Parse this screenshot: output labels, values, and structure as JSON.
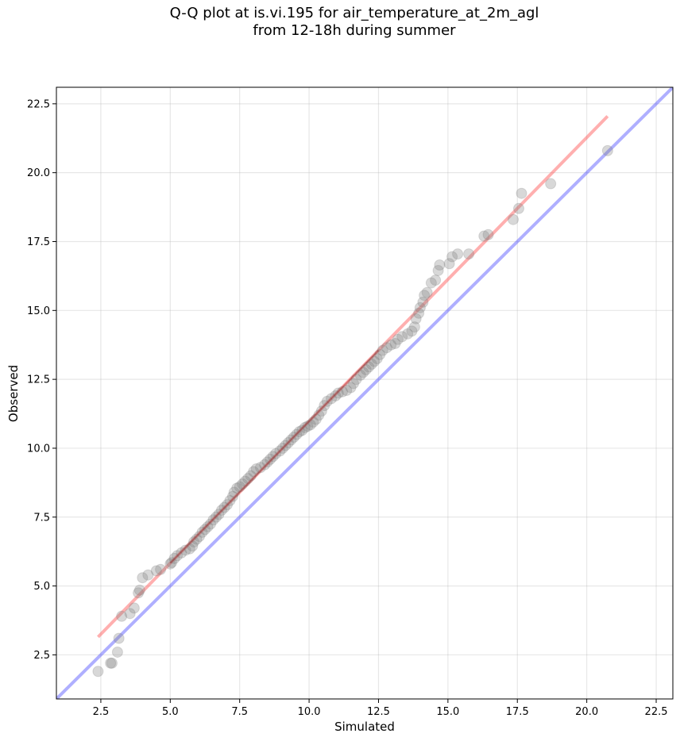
{
  "chart_data": {
    "type": "scatter",
    "title_lines": [
      "Q-Q plot at is.vi.195 for air_temperature_at_2m_agl",
      "from 12-18h during summer"
    ],
    "xlabel": "Simulated",
    "ylabel": "Observed",
    "xlim": [
      0.9,
      23.1
    ],
    "ylim": [
      0.9,
      23.1
    ],
    "xticks": [
      "2.5",
      "5.0",
      "7.5",
      "10.0",
      "12.5",
      "15.0",
      "17.5",
      "20.0",
      "22.5"
    ],
    "yticks": [
      "2.5",
      "5.0",
      "7.5",
      "10.0",
      "12.5",
      "15.0",
      "17.5",
      "20.0",
      "22.5"
    ],
    "grid": true,
    "colors": {
      "points": "#7f7f7f",
      "fit_line": "#ff4d4d",
      "identity_line": "#4d4dff",
      "points_fit_overlay": "#8b0000"
    },
    "identity_line": {
      "x": [
        0.9,
        23.1
      ],
      "y": [
        0.9,
        23.1
      ]
    },
    "fit_line": {
      "x": [
        2.4,
        20.75
      ],
      "y": [
        3.15,
        22.05
      ]
    },
    "points": [
      [
        2.4,
        1.9
      ],
      [
        2.85,
        2.2
      ],
      [
        2.9,
        2.2
      ],
      [
        3.1,
        2.6
      ],
      [
        3.15,
        3.1
      ],
      [
        3.25,
        3.9
      ],
      [
        3.55,
        4.0
      ],
      [
        3.7,
        4.2
      ],
      [
        3.85,
        4.75
      ],
      [
        3.9,
        4.85
      ],
      [
        4.0,
        5.3
      ],
      [
        4.2,
        5.4
      ],
      [
        4.5,
        5.55
      ],
      [
        4.65,
        5.6
      ],
      [
        5.0,
        5.8
      ],
      [
        5.05,
        5.85
      ],
      [
        5.15,
        6.0
      ],
      [
        5.25,
        6.1
      ],
      [
        5.4,
        6.2
      ],
      [
        5.55,
        6.3
      ],
      [
        5.7,
        6.35
      ],
      [
        5.8,
        6.45
      ],
      [
        5.85,
        6.6
      ],
      [
        5.95,
        6.7
      ],
      [
        6.05,
        6.8
      ],
      [
        6.15,
        6.95
      ],
      [
        6.25,
        7.05
      ],
      [
        6.35,
        7.15
      ],
      [
        6.45,
        7.25
      ],
      [
        6.55,
        7.4
      ],
      [
        6.65,
        7.5
      ],
      [
        6.75,
        7.6
      ],
      [
        6.85,
        7.75
      ],
      [
        6.95,
        7.85
      ],
      [
        7.05,
        7.95
      ],
      [
        7.15,
        8.1
      ],
      [
        7.25,
        8.25
      ],
      [
        7.3,
        8.4
      ],
      [
        7.4,
        8.55
      ],
      [
        7.5,
        8.6
      ],
      [
        7.6,
        8.7
      ],
      [
        7.7,
        8.8
      ],
      [
        7.8,
        8.9
      ],
      [
        7.9,
        9.0
      ],
      [
        8.0,
        9.15
      ],
      [
        8.1,
        9.25
      ],
      [
        8.25,
        9.3
      ],
      [
        8.4,
        9.4
      ],
      [
        8.5,
        9.5
      ],
      [
        8.6,
        9.6
      ],
      [
        8.7,
        9.7
      ],
      [
        8.8,
        9.8
      ],
      [
        8.95,
        9.9
      ],
      [
        9.05,
        10.0
      ],
      [
        9.15,
        10.1
      ],
      [
        9.25,
        10.2
      ],
      [
        9.35,
        10.3
      ],
      [
        9.45,
        10.4
      ],
      [
        9.55,
        10.5
      ],
      [
        9.65,
        10.6
      ],
      [
        9.75,
        10.65
      ],
      [
        9.85,
        10.75
      ],
      [
        9.95,
        10.8
      ],
      [
        10.05,
        10.85
      ],
      [
        10.15,
        10.95
      ],
      [
        10.25,
        11.05
      ],
      [
        10.35,
        11.2
      ],
      [
        10.45,
        11.35
      ],
      [
        10.55,
        11.55
      ],
      [
        10.65,
        11.7
      ],
      [
        10.8,
        11.8
      ],
      [
        10.95,
        11.9
      ],
      [
        11.05,
        12.0
      ],
      [
        11.2,
        12.05
      ],
      [
        11.35,
        12.1
      ],
      [
        11.5,
        12.2
      ],
      [
        11.6,
        12.35
      ],
      [
        11.7,
        12.5
      ],
      [
        11.85,
        12.65
      ],
      [
        11.95,
        12.75
      ],
      [
        12.05,
        12.85
      ],
      [
        12.15,
        12.95
      ],
      [
        12.25,
        13.05
      ],
      [
        12.35,
        13.15
      ],
      [
        12.45,
        13.25
      ],
      [
        12.55,
        13.4
      ],
      [
        12.65,
        13.55
      ],
      [
        12.8,
        13.65
      ],
      [
        12.95,
        13.75
      ],
      [
        13.1,
        13.8
      ],
      [
        13.2,
        13.95
      ],
      [
        13.35,
        14.05
      ],
      [
        13.55,
        14.15
      ],
      [
        13.7,
        14.25
      ],
      [
        13.8,
        14.4
      ],
      [
        13.85,
        14.7
      ],
      [
        13.95,
        14.9
      ],
      [
        14.0,
        15.1
      ],
      [
        14.1,
        15.3
      ],
      [
        14.15,
        15.55
      ],
      [
        14.25,
        15.65
      ],
      [
        14.4,
        16.0
      ],
      [
        14.55,
        16.1
      ],
      [
        14.65,
        16.45
      ],
      [
        14.7,
        16.65
      ],
      [
        15.05,
        16.7
      ],
      [
        15.15,
        16.95
      ],
      [
        15.35,
        17.05
      ],
      [
        15.75,
        17.05
      ],
      [
        16.3,
        17.7
      ],
      [
        16.45,
        17.75
      ],
      [
        17.35,
        18.3
      ],
      [
        17.55,
        18.7
      ],
      [
        17.65,
        19.25
      ],
      [
        18.7,
        19.6
      ],
      [
        20.75,
        20.8
      ]
    ]
  }
}
